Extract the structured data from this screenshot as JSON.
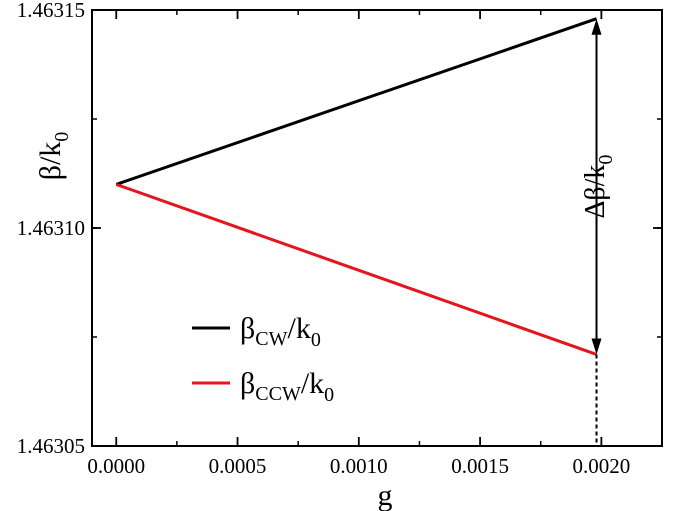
{
  "chart_data": {
    "type": "line",
    "xlabel": "g",
    "ylabel": {
      "main": "β/k",
      "sub": "0"
    },
    "xlim": [
      -0.0001,
      0.00225
    ],
    "ylim": [
      1.46305,
      1.46315
    ],
    "xticks": [
      0.0,
      0.0005,
      0.001,
      0.0015,
      0.002
    ],
    "xtick_labels": [
      "0.0000",
      "0.0005",
      "0.0010",
      "0.0015",
      "0.0020"
    ],
    "yticks": [
      1.46305,
      1.4631,
      1.46315
    ],
    "ytick_labels": [
      "1.46305",
      "1.46310",
      "1.46315"
    ],
    "grid": false,
    "legend_position": "lower-left",
    "series": [
      {
        "name": {
          "main": "β",
          "sub": "CW",
          "tail": "/k",
          "tail_sub": "0"
        },
        "color": "#000000",
        "x": [
          0.0,
          0.00198
        ],
        "y": [
          1.46311,
          1.463148
        ]
      },
      {
        "name": {
          "main": "β",
          "sub": "CCW",
          "tail": "/k",
          "tail_sub": "0"
        },
        "color": "#e8141b",
        "x": [
          0.0,
          0.00198
        ],
        "y": [
          1.46311,
          1.463071
        ]
      }
    ],
    "annotation": {
      "text": "Δβ/k",
      "sub": "0",
      "x": 0.00198,
      "y_top": 1.463148,
      "y_bottom": 1.463071
    }
  }
}
